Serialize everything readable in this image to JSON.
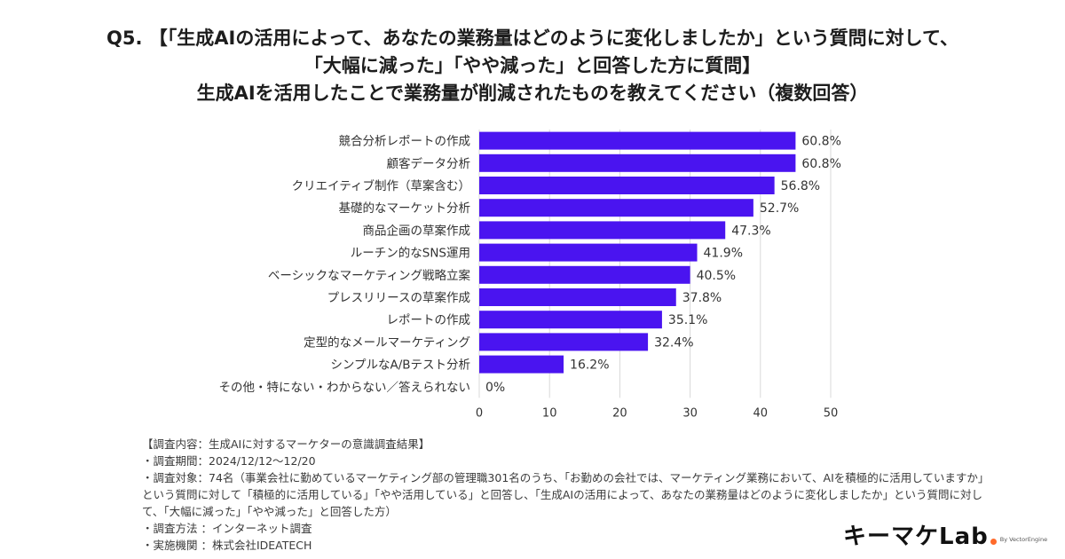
{
  "header": {
    "title_lines": [
      "Q5. 【「生成AIの活用によって、あなたの業務量はどのように変化しましたか」という質問に対して、",
      "「大幅に減った」「やや減った」と回答した方に質問】",
      "生成AIを活用したことで業務量が削減されたものを教えてください（複数回答）"
    ]
  },
  "chart_data": {
    "type": "bar",
    "orientation": "horizontal",
    "categories": [
      "競合分析レポートの作成",
      "顧客データ分析",
      "クリエイティブ制作（草案含む）",
      "基礎的なマーケット分析",
      "商品企画の草案作成",
      "ルーチン的なSNS運用",
      "ベーシックなマーケティング戦略立案",
      "プレスリリースの草案作成",
      "レポートの作成",
      "定型的なメールマーケティング",
      "シンプルなA/Bテスト分析",
      "その他・特にない・わからない／答えられない"
    ],
    "values": [
      45,
      45,
      42,
      39,
      35,
      31,
      30,
      28,
      26,
      24,
      12,
      0
    ],
    "data_labels": [
      "60.8%",
      "60.8%",
      "56.8%",
      "52.7%",
      "47.3%",
      "41.9%",
      "40.5%",
      "37.8%",
      "35.1%",
      "32.4%",
      "16.2%",
      "0%"
    ],
    "x_ticks": [
      0,
      10,
      20,
      30,
      40,
      50
    ],
    "xlim": [
      0,
      50
    ],
    "bar_color": "#4a14f0",
    "grid": true
  },
  "notes": {
    "lines": [
      "【調査内容：生成AIに対するマーケターの意識調査結果】",
      "・調査期間：2024/12/12〜12/20",
      "・調査対象：74名（事業会社に勤めているマーケティング部の管理職301名のうち、「お勤めの会社では、マーケティング業務において、AIを積極的に活用していますか」という質問に対して「積極的に活用している」「やや活用している」と回答し、「生成AIの活用によって、あなたの業務量はどのように変化しましたか」という質問に対して、「大幅に減った」「やや減った」と回答した方）",
      "・調査方法 ：インターネット調査",
      "・実施機関 ：株式会社IDEATECH"
    ]
  },
  "logo": {
    "text": "キーマケLab",
    "sub": "By VectorEngine",
    "accent": "#ff6a2a"
  }
}
